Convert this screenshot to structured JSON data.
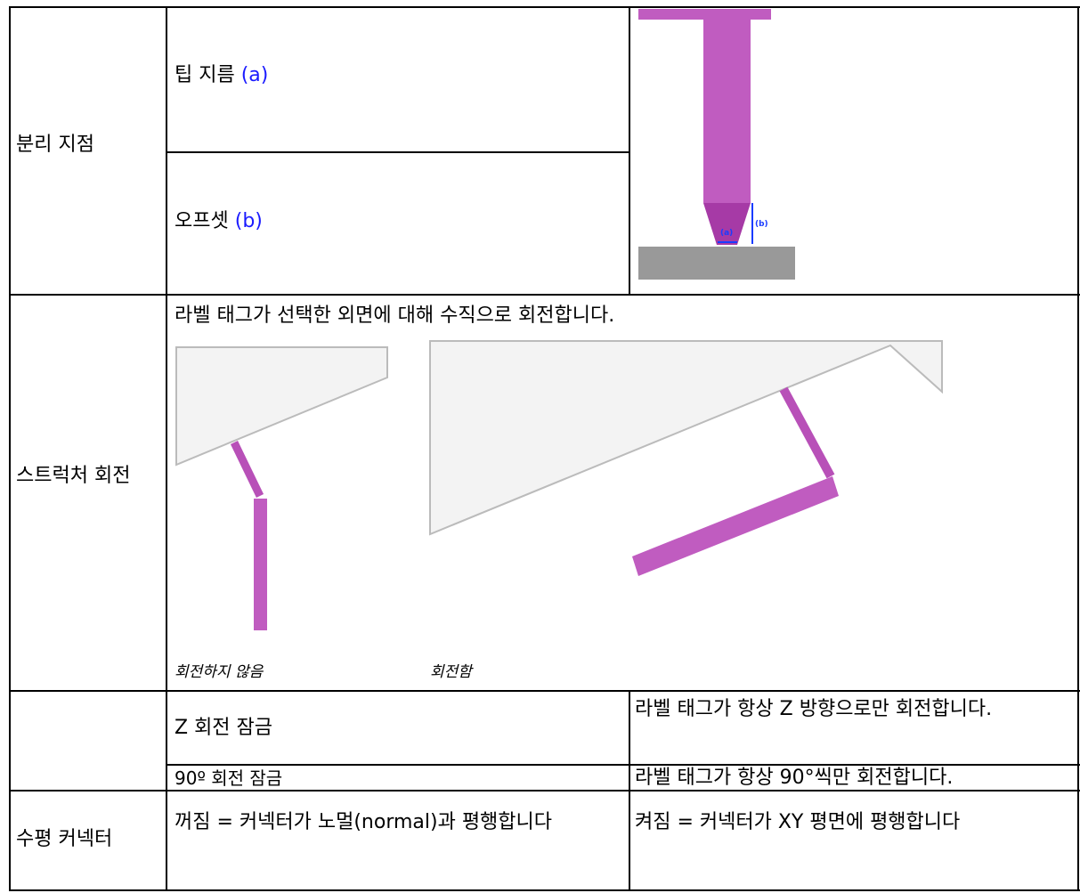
{
  "table": {
    "rows": [
      {
        "label": "분리 지점",
        "items": [
          {
            "text": "팁 지름",
            "ref": "(a)"
          },
          {
            "text": "오프셋",
            "ref": "(b)"
          }
        ],
        "figure_labels": [
          "(a)",
          "(b)"
        ]
      },
      {
        "label": "스트럭처 회전",
        "description": "라벨 태그가 선택한 외면에 대해 수직으로 회전합니다.",
        "captions": [
          "회전하지 않음",
          "회전함"
        ]
      },
      {
        "options": [
          {
            "name": "Z 회전 잠금",
            "description": "라벨 태그가 항상 Z 방향으로만 회전합니다."
          },
          {
            "name": "90º 회전 잠금",
            "description": "라벨 태그가 항상 90°씩만 회전합니다."
          }
        ]
      },
      {
        "label": "수평 커넥터",
        "off": "꺼짐 = 커넥터가 노멀(normal)과 평행합니다",
        "on": "켜짐 = 커넥터가 XY 평면에 평행합니다"
      }
    ]
  }
}
